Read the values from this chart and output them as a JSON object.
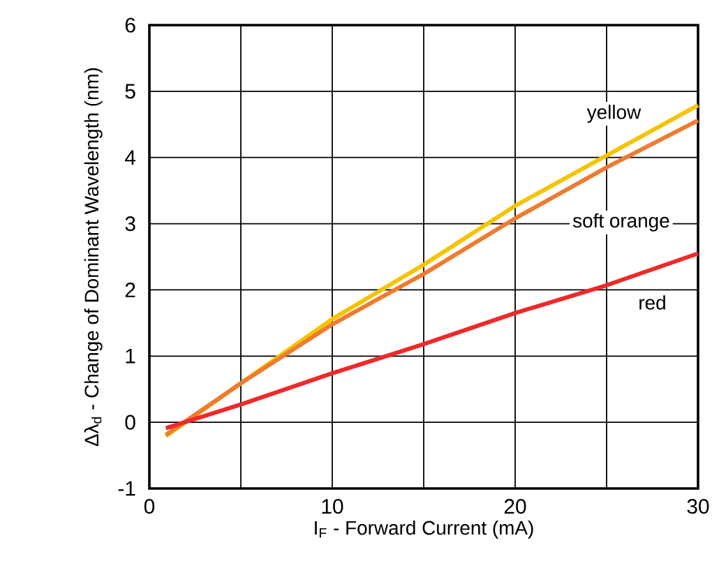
{
  "chart_data": {
    "type": "line",
    "xlabel": "I$_{F}$ - Forward Current (mA)",
    "ylabel": "Δλ$_{d}$ - Change of Dominant Wavelength (nm)",
    "xlim": [
      0,
      30
    ],
    "ylim": [
      -1,
      6
    ],
    "xticks": [
      0,
      {
        "value": 5,
        "label": null
      },
      10,
      {
        "value": 15,
        "label": null
      },
      20,
      {
        "value": 25,
        "label": null
      },
      30
    ],
    "yticks": [
      -1,
      0,
      1,
      2,
      3,
      4,
      5,
      6
    ],
    "grid": true,
    "legend": false,
    "marker": "none",
    "line_style": "solid",
    "series": [
      {
        "name": "yellow",
        "color": "#f5c400",
        "x": [
          0.9,
          5,
          10,
          15,
          20,
          25,
          30
        ],
        "values": [
          -0.21,
          0.59,
          1.56,
          2.38,
          3.27,
          4.03,
          4.79
        ]
      },
      {
        "name": "soft orange",
        "color": "#ee7b30",
        "x": [
          0.9,
          5,
          10,
          15,
          20,
          25,
          30
        ],
        "values": [
          -0.19,
          0.59,
          1.48,
          2.24,
          3.08,
          3.85,
          4.56
        ]
      },
      {
        "name": "red",
        "color": "#ee2a2a",
        "x": [
          0.9,
          5,
          10,
          15,
          20,
          25,
          30
        ],
        "values": [
          -0.09,
          0.27,
          0.74,
          1.18,
          1.65,
          2.07,
          2.55
        ]
      }
    ]
  }
}
